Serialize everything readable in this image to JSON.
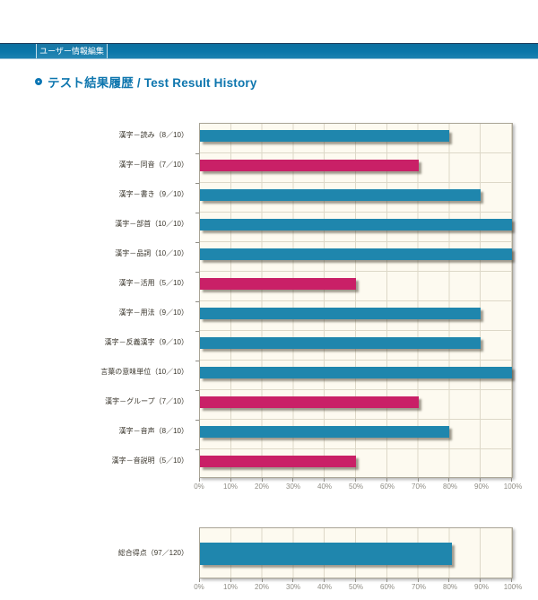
{
  "navbar": {
    "tab": "ユーザー情報編集"
  },
  "header": {
    "title": "テスト結果履歴 / Test Result History"
  },
  "colors": {
    "navbar_blue": "#0a76a9",
    "title_blue": "#0e76ae",
    "bar_blue": "#1f86ad",
    "bar_pink": "#c92067",
    "plot_background": "#fdfaf0",
    "gridline": "#ddd8c8",
    "axis_text": "#8f8d85"
  },
  "chart_data": [
    {
      "type": "bar",
      "orientation": "horizontal",
      "title": "",
      "categories": [
        "漢字－読み（8／10）",
        "漢字－同音（7／10）",
        "漢字－書き（9／10）",
        "漢字－部首（10／10）",
        "漢字－品詞（10／10）",
        "漢字－活用（5／10）",
        "漢字－用法（9／10）",
        "漢字－反義漢字（9／10）",
        "言葉の意味単位（10／10）",
        "漢字－グループ（7／10）",
        "漢字－音声（8／10）",
        "漢字－音説明（5／10）"
      ],
      "values": [
        80,
        70,
        90,
        100,
        100,
        50,
        90,
        90,
        100,
        70,
        80,
        50
      ],
      "bar_colors": [
        "#1f86ad",
        "#c92067",
        "#1f86ad",
        "#1f86ad",
        "#1f86ad",
        "#c92067",
        "#1f86ad",
        "#1f86ad",
        "#1f86ad",
        "#c92067",
        "#1f86ad",
        "#c92067"
      ],
      "x_ticks": [
        "0%",
        "10%",
        "20%",
        "30%",
        "40%",
        "50%",
        "60%",
        "70%",
        "80%",
        "90%",
        "100%"
      ],
      "xlim": [
        0,
        100
      ],
      "grid": true,
      "legend": false,
      "bar": {
        "height": 13,
        "offset": 7
      }
    },
    {
      "type": "bar",
      "orientation": "horizontal",
      "title": "",
      "categories": [
        "総合得点（97／120）"
      ],
      "values": [
        80.8
      ],
      "bar_colors": [
        "#1f86ad"
      ],
      "x_ticks": [
        "0%",
        "10%",
        "20%",
        "30%",
        "40%",
        "50%",
        "60%",
        "70%",
        "80%",
        "90%",
        "100%"
      ],
      "xlim": [
        0,
        100
      ],
      "grid": true,
      "legend": false,
      "bar": {
        "height": 25,
        "offset": 16
      }
    }
  ]
}
